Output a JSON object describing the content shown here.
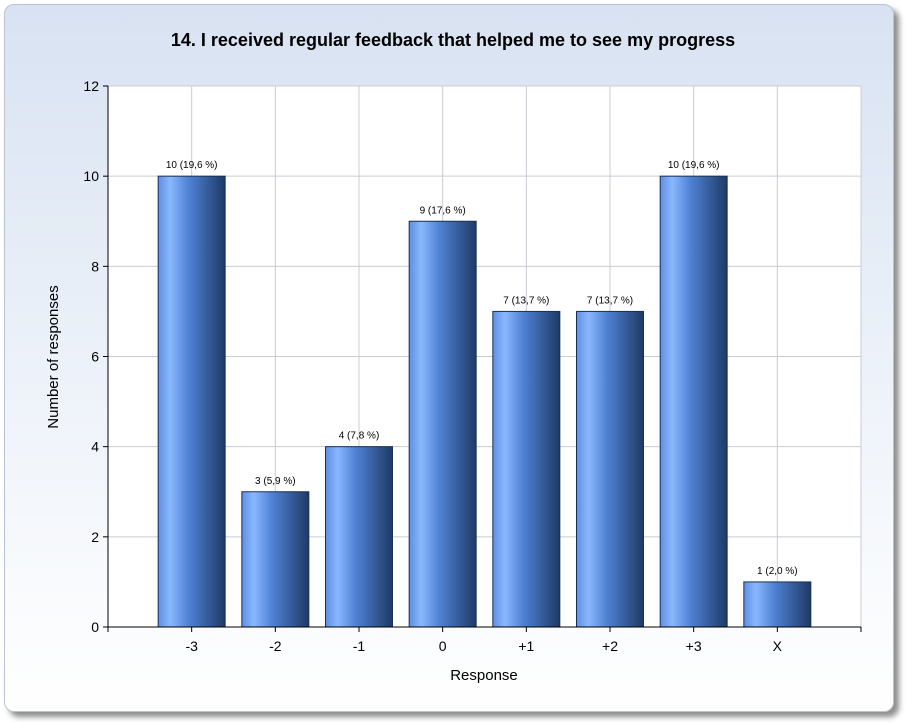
{
  "chart_data": {
    "type": "bar",
    "title": "14. I received regular feedback that helped me to see my progress",
    "xlabel": "Response",
    "ylabel": "Number of responses",
    "categories": [
      "-3",
      "-2",
      "-1",
      "0",
      "+1",
      "+2",
      "+3",
      "X"
    ],
    "values": [
      10,
      3,
      4,
      9,
      7,
      7,
      10,
      1
    ],
    "data_labels": [
      "10 (19,6 %)",
      "3 (5,9 %)",
      "4 (7,8 %)",
      "9 (17,6 %)",
      "7 (13,7 %)",
      "7 (13,7 %)",
      "10 (19,6 %)",
      "1 (2,0 %)"
    ],
    "ylim": [
      0,
      12
    ],
    "yticks": [
      0,
      2,
      4,
      6,
      8,
      10,
      12
    ],
    "grid": true,
    "legend": "none",
    "colors": {
      "bar_light": "#8ab8ff",
      "bar_mid": "#4a7fd6",
      "bar_dark": "#1e3a66",
      "grid": "#c8ccd4",
      "plot_bg": "#ffffff"
    }
  }
}
